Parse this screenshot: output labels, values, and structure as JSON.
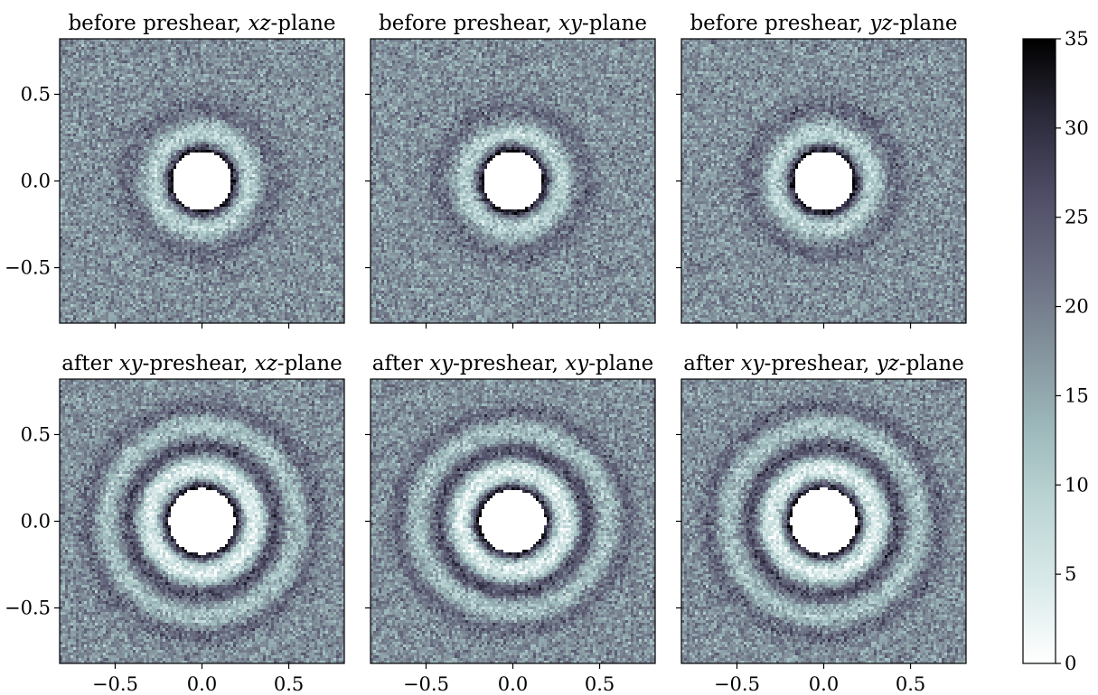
{
  "chart_data": {
    "type": "heatmap",
    "layout": "2 rows x 3 columns of radial distribution heatmaps with shared colorbar",
    "colormap": "bone_r",
    "colorbar": {
      "range": [
        0,
        35
      ],
      "ticks": [
        "0",
        "5",
        "10",
        "15",
        "20",
        "25",
        "30",
        "35"
      ]
    },
    "x_range": [
      -0.82,
      0.82
    ],
    "y_range": [
      -0.82,
      0.82
    ],
    "x_ticks": [
      "−0.5",
      "0.0",
      "0.5"
    ],
    "y_ticks": [
      "0.5",
      "0.0",
      "−0.5"
    ],
    "background_level": 18,
    "panels": [
      {
        "title_pre": "before preshear, ",
        "title_em1": "xz",
        "title_mid": "",
        "title_em2": "",
        "title_post": "-plane",
        "core_radius": 0.17,
        "core_aspect": 1.0,
        "shell_peak": 34,
        "shell_width": 0.035,
        "rings": [
          {
            "r": 0.27,
            "amp": -9,
            "w": 0.05
          },
          {
            "r": 0.42,
            "amp": 4,
            "w": 0.05
          }
        ]
      },
      {
        "title_pre": "before preshear, ",
        "title_em1": "xy",
        "title_mid": "",
        "title_em2": "",
        "title_post": "-plane",
        "core_radius": 0.17,
        "core_aspect": 1.0,
        "shell_peak": 34,
        "shell_width": 0.035,
        "rings": [
          {
            "r": 0.27,
            "amp": -9,
            "w": 0.05
          },
          {
            "r": 0.42,
            "amp": 4,
            "w": 0.05
          }
        ]
      },
      {
        "title_pre": "before preshear, ",
        "title_em1": "yz",
        "title_mid": "",
        "title_em2": "",
        "title_post": "-plane",
        "core_radius": 0.17,
        "core_aspect": 1.0,
        "shell_peak": 34,
        "shell_width": 0.035,
        "rings": [
          {
            "r": 0.27,
            "amp": -9,
            "w": 0.05
          },
          {
            "r": 0.42,
            "amp": 4,
            "w": 0.05
          }
        ]
      },
      {
        "title_pre": "after ",
        "title_em1": "xy",
        "title_mid": "-preshear, ",
        "title_em2": "xz",
        "title_post": "-plane",
        "core_radius": 0.19,
        "core_aspect": 1.0,
        "shell_peak": 35,
        "shell_width": 0.035,
        "rings": [
          {
            "r": 0.3,
            "amp": -14,
            "w": 0.06
          },
          {
            "r": 0.42,
            "amp": 10,
            "w": 0.04
          },
          {
            "r": 0.55,
            "amp": -6,
            "w": 0.05
          },
          {
            "r": 0.66,
            "amp": 5,
            "w": 0.04
          }
        ]
      },
      {
        "title_pre": "after ",
        "title_em1": "xy",
        "title_mid": "-preshear, ",
        "title_em2": "xy",
        "title_post": "-plane",
        "core_radius": 0.19,
        "core_aspect": 0.95,
        "shell_peak": 35,
        "shell_width": 0.035,
        "rings": [
          {
            "r": 0.3,
            "amp": -14,
            "w": 0.06
          },
          {
            "r": 0.42,
            "amp": 10,
            "w": 0.04
          },
          {
            "r": 0.55,
            "amp": -6,
            "w": 0.05
          },
          {
            "r": 0.66,
            "amp": 5,
            "w": 0.04
          }
        ]
      },
      {
        "title_pre": "after ",
        "title_em1": "xy",
        "title_mid": "-preshear, ",
        "title_em2": "yz",
        "title_post": "-plane",
        "core_radius": 0.19,
        "core_aspect": 1.0,
        "shell_peak": 35,
        "shell_width": 0.035,
        "rings": [
          {
            "r": 0.3,
            "amp": -14,
            "w": 0.06
          },
          {
            "r": 0.42,
            "amp": 10,
            "w": 0.04
          },
          {
            "r": 0.55,
            "amp": -6,
            "w": 0.05
          },
          {
            "r": 0.66,
            "amp": 5,
            "w": 0.04
          }
        ]
      }
    ]
  }
}
